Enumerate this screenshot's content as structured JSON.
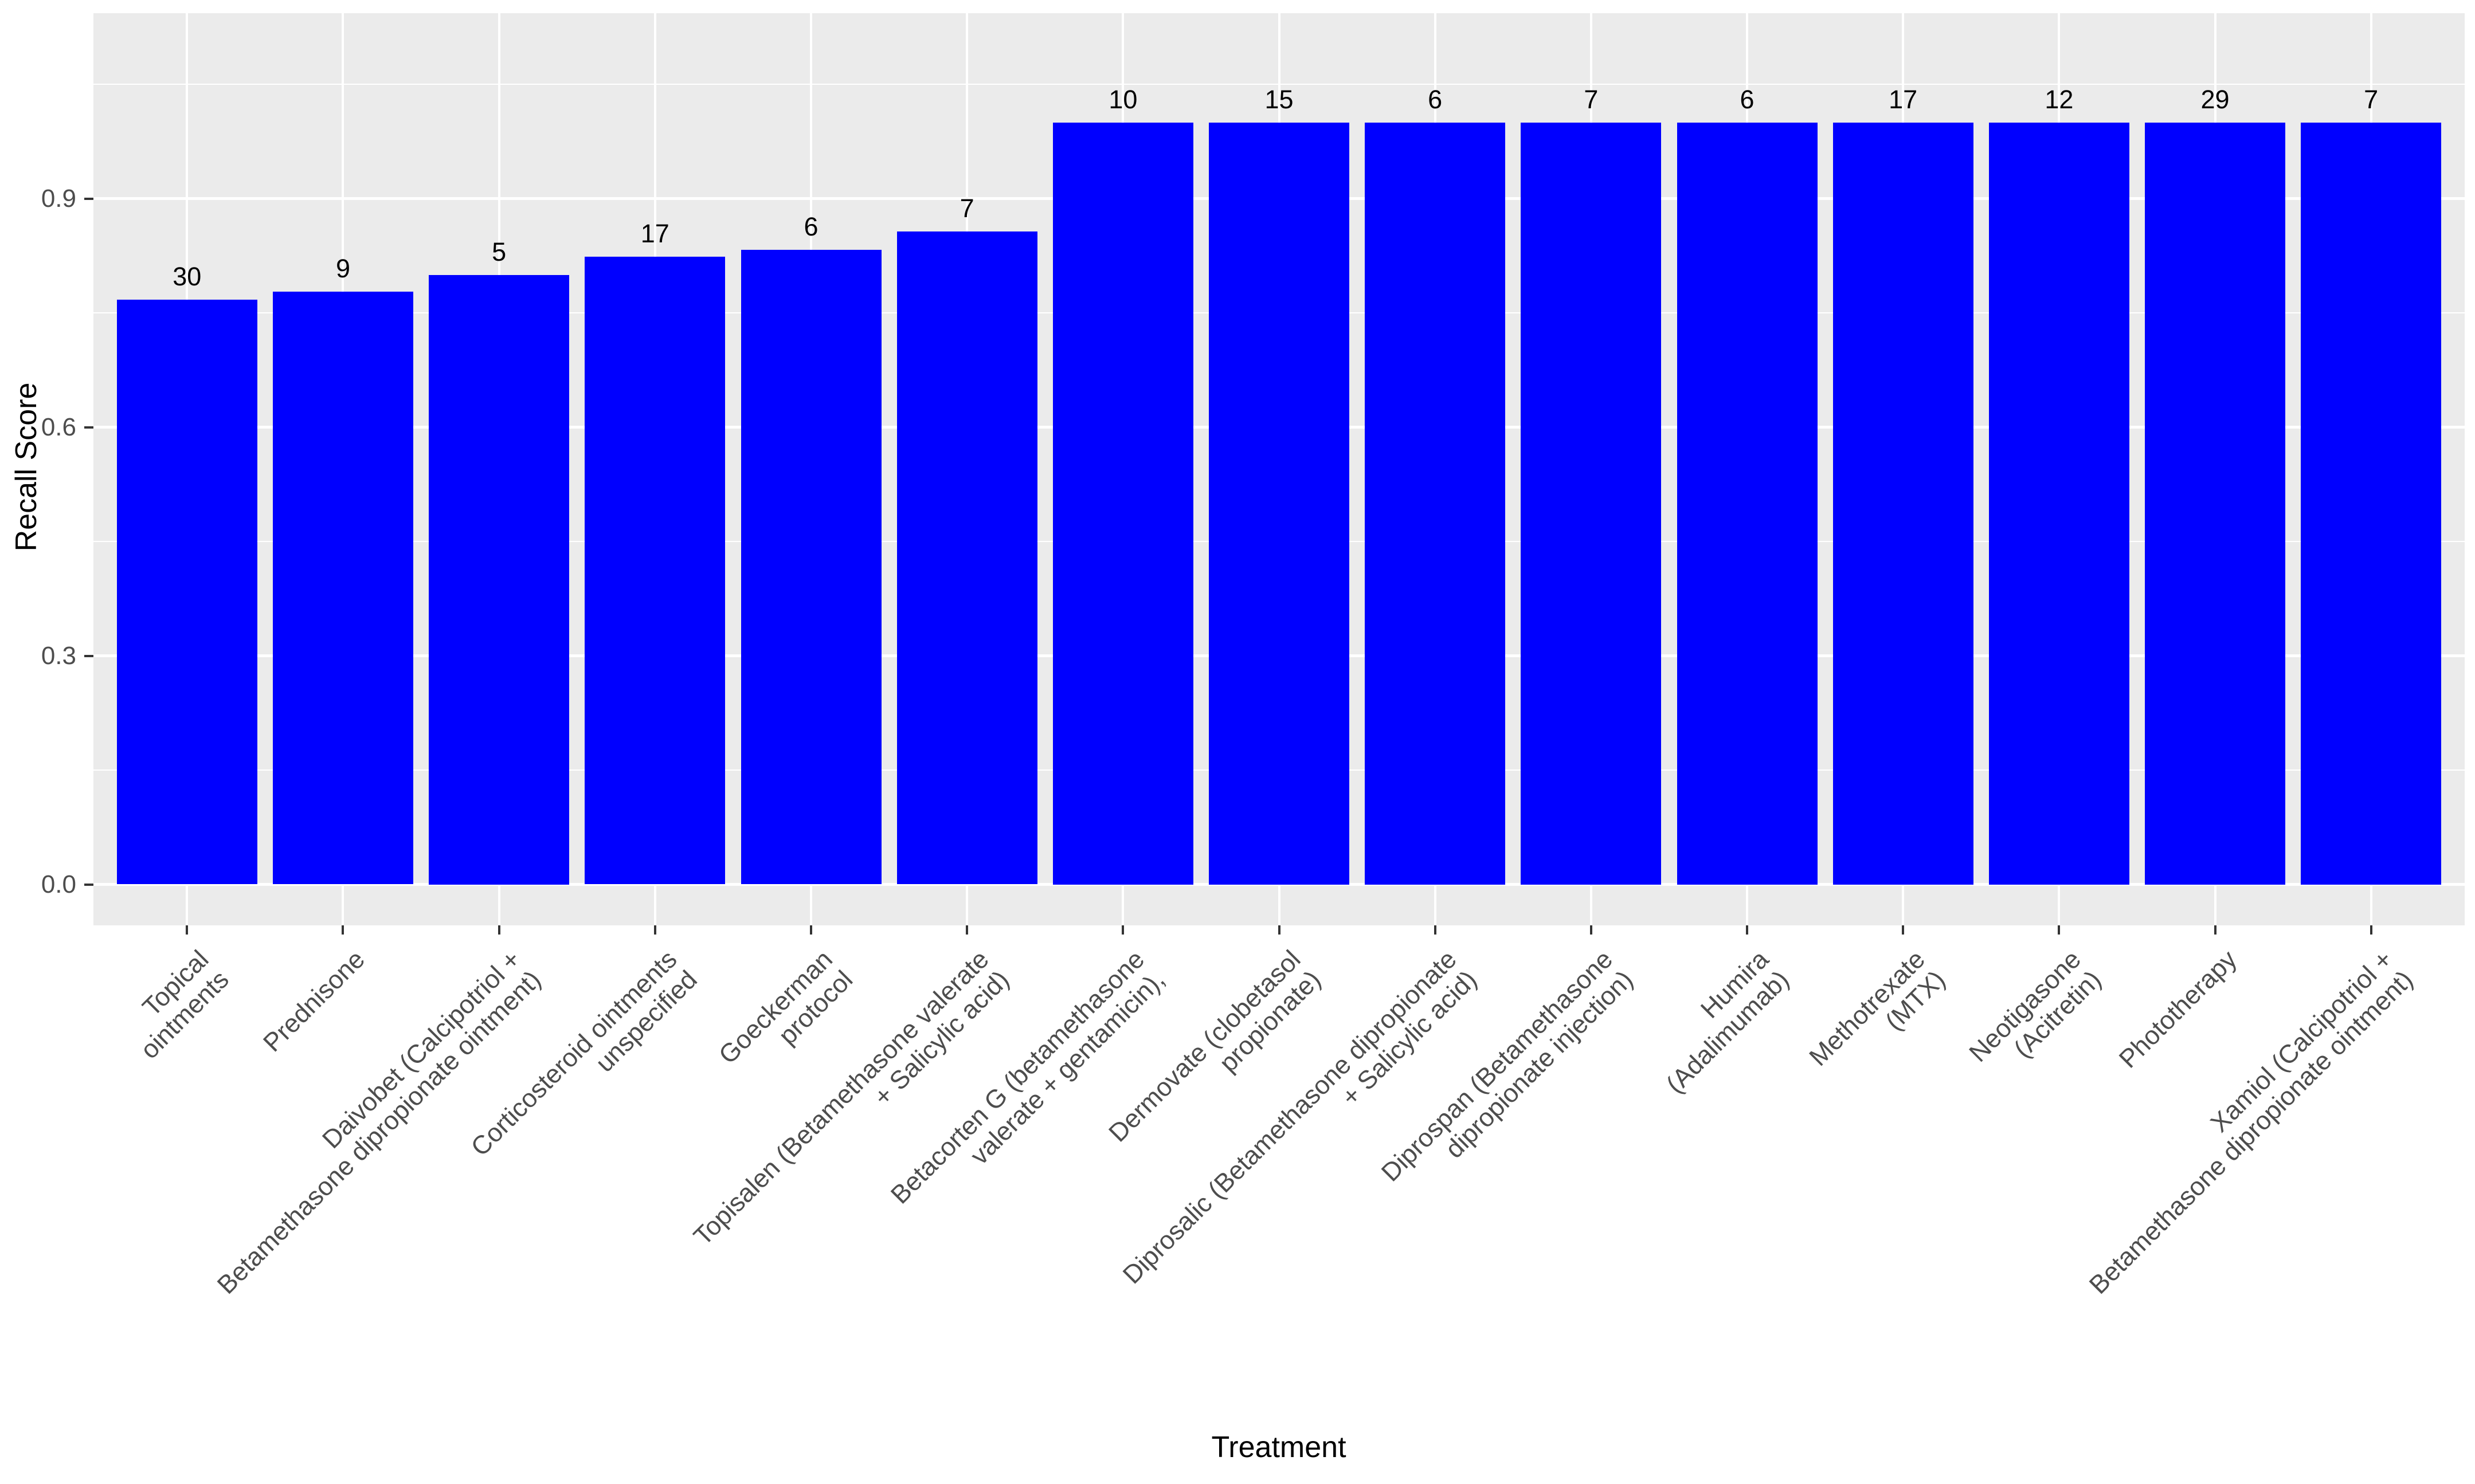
{
  "chart_data": {
    "type": "bar",
    "title": "",
    "xlabel": "Treatment",
    "ylabel": "Recall Score",
    "ylim": [
      0,
      1.143
    ],
    "yticks": [
      "0.0",
      "0.3",
      "0.6",
      "0.9"
    ],
    "ytick_values": [
      0.0,
      0.3,
      0.6,
      0.9
    ],
    "minor_gridlines": [
      0.15,
      0.45,
      0.75,
      1.05
    ],
    "grid": "major and minor white gridlines on gray panel, vertical gridline at each category",
    "legend": false,
    "categories": [
      "Topical\nointments",
      "Prednisone",
      "Daivobet (Calcipotriol +\nBetamethasone dipropionate ointment)",
      "Corticosteroid ointments\nunspecified",
      "Goeckerman\nprotocol",
      "Topisalen (Betamethasone valerate\n+ Salicylic acid)",
      "Betacorten G (betamethasone\nvalerate + gentamicin),",
      "Dermovate (clobetasol\npropionate)",
      "Diprosalic (Betamethasone dipropionate\n+ Salicylic acid)",
      "Diprospan (Betamethasone\ndipropionate injection)",
      "Humira\n(Adalimumab)",
      "Methotrexate\n(MTX)",
      "Neotigasone\n(Acitretin)",
      "Phototherapy",
      "Xamiol (Calcipotriol +\nBetamethasone dipropionate ointment)"
    ],
    "series": [
      {
        "name": "Recall Score",
        "values": [
          0.767,
          0.778,
          0.8,
          0.824,
          0.833,
          0.857,
          1.0,
          1.0,
          1.0,
          1.0,
          1.0,
          1.0,
          1.0,
          1.0,
          1.0
        ]
      }
    ],
    "bar_labels": [
      "30",
      "9",
      "5",
      "17",
      "6",
      "7",
      "10",
      "15",
      "6",
      "7",
      "6",
      "17",
      "12",
      "29",
      "7"
    ],
    "colors": {
      "bar": "#0000ff",
      "panel_bg": "#ebebeb",
      "gridline": "#ffffff",
      "axis_text": "#4d4d4d",
      "tick_mark": "#333333",
      "value_label": "#000000",
      "background": "#ffffff"
    }
  }
}
